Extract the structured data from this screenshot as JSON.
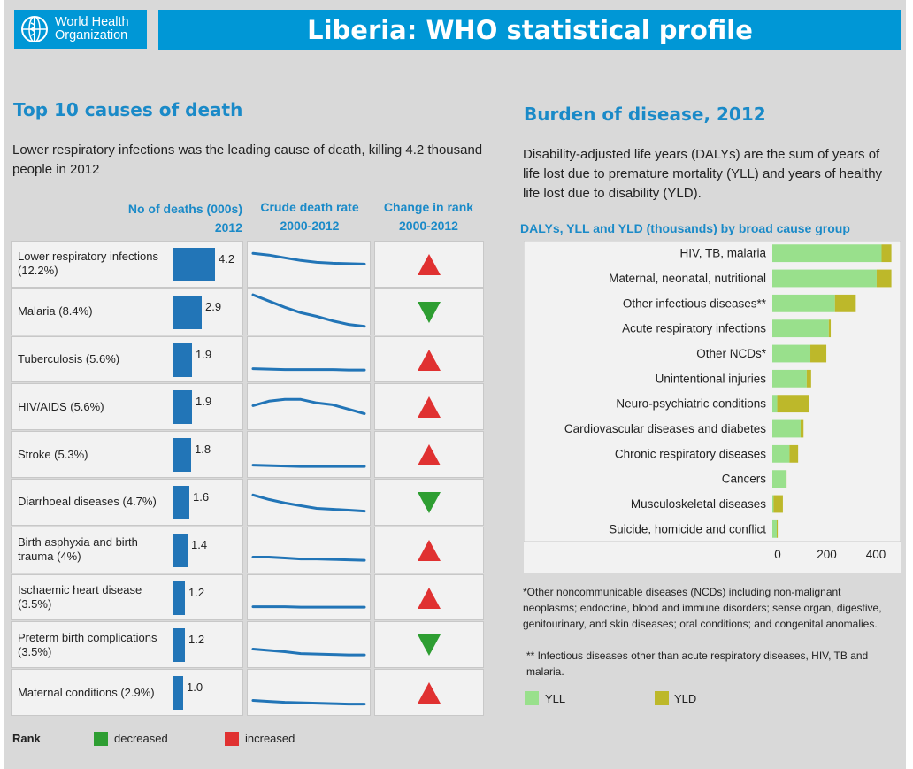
{
  "header": {
    "org_name_line1": "World Health",
    "org_name_line2": "Organization",
    "title": "Liberia: WHO statistical profile"
  },
  "colors": {
    "brand_blue": "#0097d6",
    "heading_blue": "#1a8ac8",
    "death_bar": "#2275b7",
    "increased": "#e03131",
    "decreased": "#2e9e32",
    "yll": "#99e08c",
    "yld": "#bdb82a"
  },
  "deaths_section": {
    "heading": "Top 10 causes of death",
    "summary": "Lower respiratory infections was the leading cause of death, killing 4.2 thousand people in 2012",
    "col_deaths_line1": "No of deaths (000s)",
    "col_deaths_line2": "2012",
    "col_rate_line1": "Crude death rate",
    "col_rate_line2": "2000-2012",
    "col_rank_line1": "Change in rank",
    "col_rank_line2": "2000-2012",
    "rank_legend_title": "Rank",
    "rank_decreased_label": "decreased",
    "rank_increased_label": "increased"
  },
  "causes": [
    {
      "label": "Lower respiratory infections (12.2%)",
      "deaths": 4.2,
      "deaths_label": "4.2",
      "rank_change": "increased",
      "trend": [
        0.74,
        0.7,
        0.64,
        0.58,
        0.54,
        0.52,
        0.51,
        0.5
      ]
    },
    {
      "label": "Malaria (8.4%)",
      "deaths": 2.9,
      "deaths_label": "2.9",
      "rank_change": "decreased",
      "trend": [
        0.88,
        0.74,
        0.6,
        0.48,
        0.4,
        0.3,
        0.22,
        0.18
      ]
    },
    {
      "label": "Tuberculosis (5.6%)",
      "deaths": 1.9,
      "deaths_label": "1.9",
      "rank_change": "increased",
      "trend": [
        0.3,
        0.29,
        0.28,
        0.28,
        0.28,
        0.28,
        0.27,
        0.27
      ]
    },
    {
      "label": "HIV/AIDS (5.6%)",
      "deaths": 1.9,
      "deaths_label": "1.9",
      "rank_change": "increased",
      "trend": [
        0.52,
        0.62,
        0.66,
        0.66,
        0.58,
        0.54,
        0.44,
        0.34
      ]
    },
    {
      "label": "Stroke (5.3%)",
      "deaths": 1.8,
      "deaths_label": "1.8",
      "rank_change": "increased",
      "trend": [
        0.26,
        0.25,
        0.24,
        0.23,
        0.23,
        0.23,
        0.23,
        0.23
      ]
    },
    {
      "label": "Diarrhoeal diseases (4.7%)",
      "deaths": 1.6,
      "deaths_label": "1.6",
      "rank_change": "decreased",
      "trend": [
        0.66,
        0.56,
        0.48,
        0.42,
        0.36,
        0.34,
        0.32,
        0.3
      ]
    },
    {
      "label": "Birth asphyxia and birth trauma (4%)",
      "deaths": 1.4,
      "deaths_label": "1.4",
      "rank_change": "increased",
      "trend": [
        0.34,
        0.34,
        0.32,
        0.3,
        0.3,
        0.29,
        0.28,
        0.27
      ]
    },
    {
      "label": "Ischaemic heart disease (3.5%)",
      "deaths": 1.2,
      "deaths_label": "1.2",
      "rank_change": "increased",
      "trend": [
        0.3,
        0.3,
        0.3,
        0.29,
        0.29,
        0.29,
        0.29,
        0.29
      ]
    },
    {
      "label": "Preterm birth complications (3.5%)",
      "deaths": 1.2,
      "deaths_label": "1.2",
      "rank_change": "decreased",
      "trend": [
        0.4,
        0.37,
        0.34,
        0.3,
        0.29,
        0.28,
        0.27,
        0.27
      ]
    },
    {
      "label": "Maternal conditions (2.9%)",
      "deaths": 1.0,
      "deaths_label": "1.0",
      "rank_change": "increased",
      "trend": [
        0.32,
        0.3,
        0.28,
        0.27,
        0.26,
        0.25,
        0.24,
        0.24
      ]
    }
  ],
  "burden_section": {
    "heading": "Burden of disease, 2012",
    "summary": "Disability-adjusted life years (DALYs) are the sum of years of life lost due to premature mortality (YLL) and years of healthy life lost due to disability (YLD).",
    "chart_title": "DALYs, YLL and YLD (thousands) by broad cause group",
    "footnote_1": "*Other noncommunicable diseases (NCDs) including non-malignant neoplasms; endocrine, blood and immune disorders; sense organ, digestive, genitourinary, and skin diseases; oral conditions; and congenital anomalies.",
    "footnote_2": "** Infectious diseases other than acute respiratory diseases, HIV, TB and malaria."
  },
  "chart_data": [
    {
      "type": "bar",
      "orientation": "horizontal",
      "title": "No of deaths (000s) 2012",
      "categories": [
        "Lower respiratory infections (12.2%)",
        "Malaria (8.4%)",
        "Tuberculosis (5.6%)",
        "HIV/AIDS (5.6%)",
        "Stroke (5.3%)",
        "Diarrhoeal diseases (4.7%)",
        "Birth asphyxia and birth trauma (4%)",
        "Ischaemic heart disease (3.5%)",
        "Preterm birth complications (3.5%)",
        "Maternal conditions (2.9%)"
      ],
      "values": [
        4.2,
        2.9,
        1.9,
        1.9,
        1.8,
        1.6,
        1.4,
        1.2,
        1.2,
        1.0
      ]
    },
    {
      "type": "bar",
      "orientation": "horizontal",
      "stacked": true,
      "title": "DALYs, YLL and YLD (thousands) by broad cause group",
      "categories": [
        "HIV, TB, malaria",
        "Maternal, neonatal, nutritional",
        "Other infectious diseases**",
        "Acute respiratory infections",
        "Other NCDs*",
        "Unintentional injuries",
        "Neuro-psychiatric conditions",
        "Cardiovascular diseases and diabetes",
        "Chronic respiratory diseases",
        "Cancers",
        "Musculoskeletal diseases",
        "Suicide, homicide and conflict"
      ],
      "series": [
        {
          "name": "YLL",
          "values": [
            445,
            425,
            255,
            230,
            155,
            140,
            20,
            115,
            70,
            55,
            5,
            18
          ]
        },
        {
          "name": "YLD",
          "values": [
            40,
            60,
            85,
            8,
            65,
            18,
            130,
            12,
            35,
            3,
            38,
            4
          ]
        }
      ],
      "xlim": [
        0,
        500
      ],
      "xticks": [
        0,
        200,
        400
      ],
      "legend": "bottom"
    }
  ]
}
